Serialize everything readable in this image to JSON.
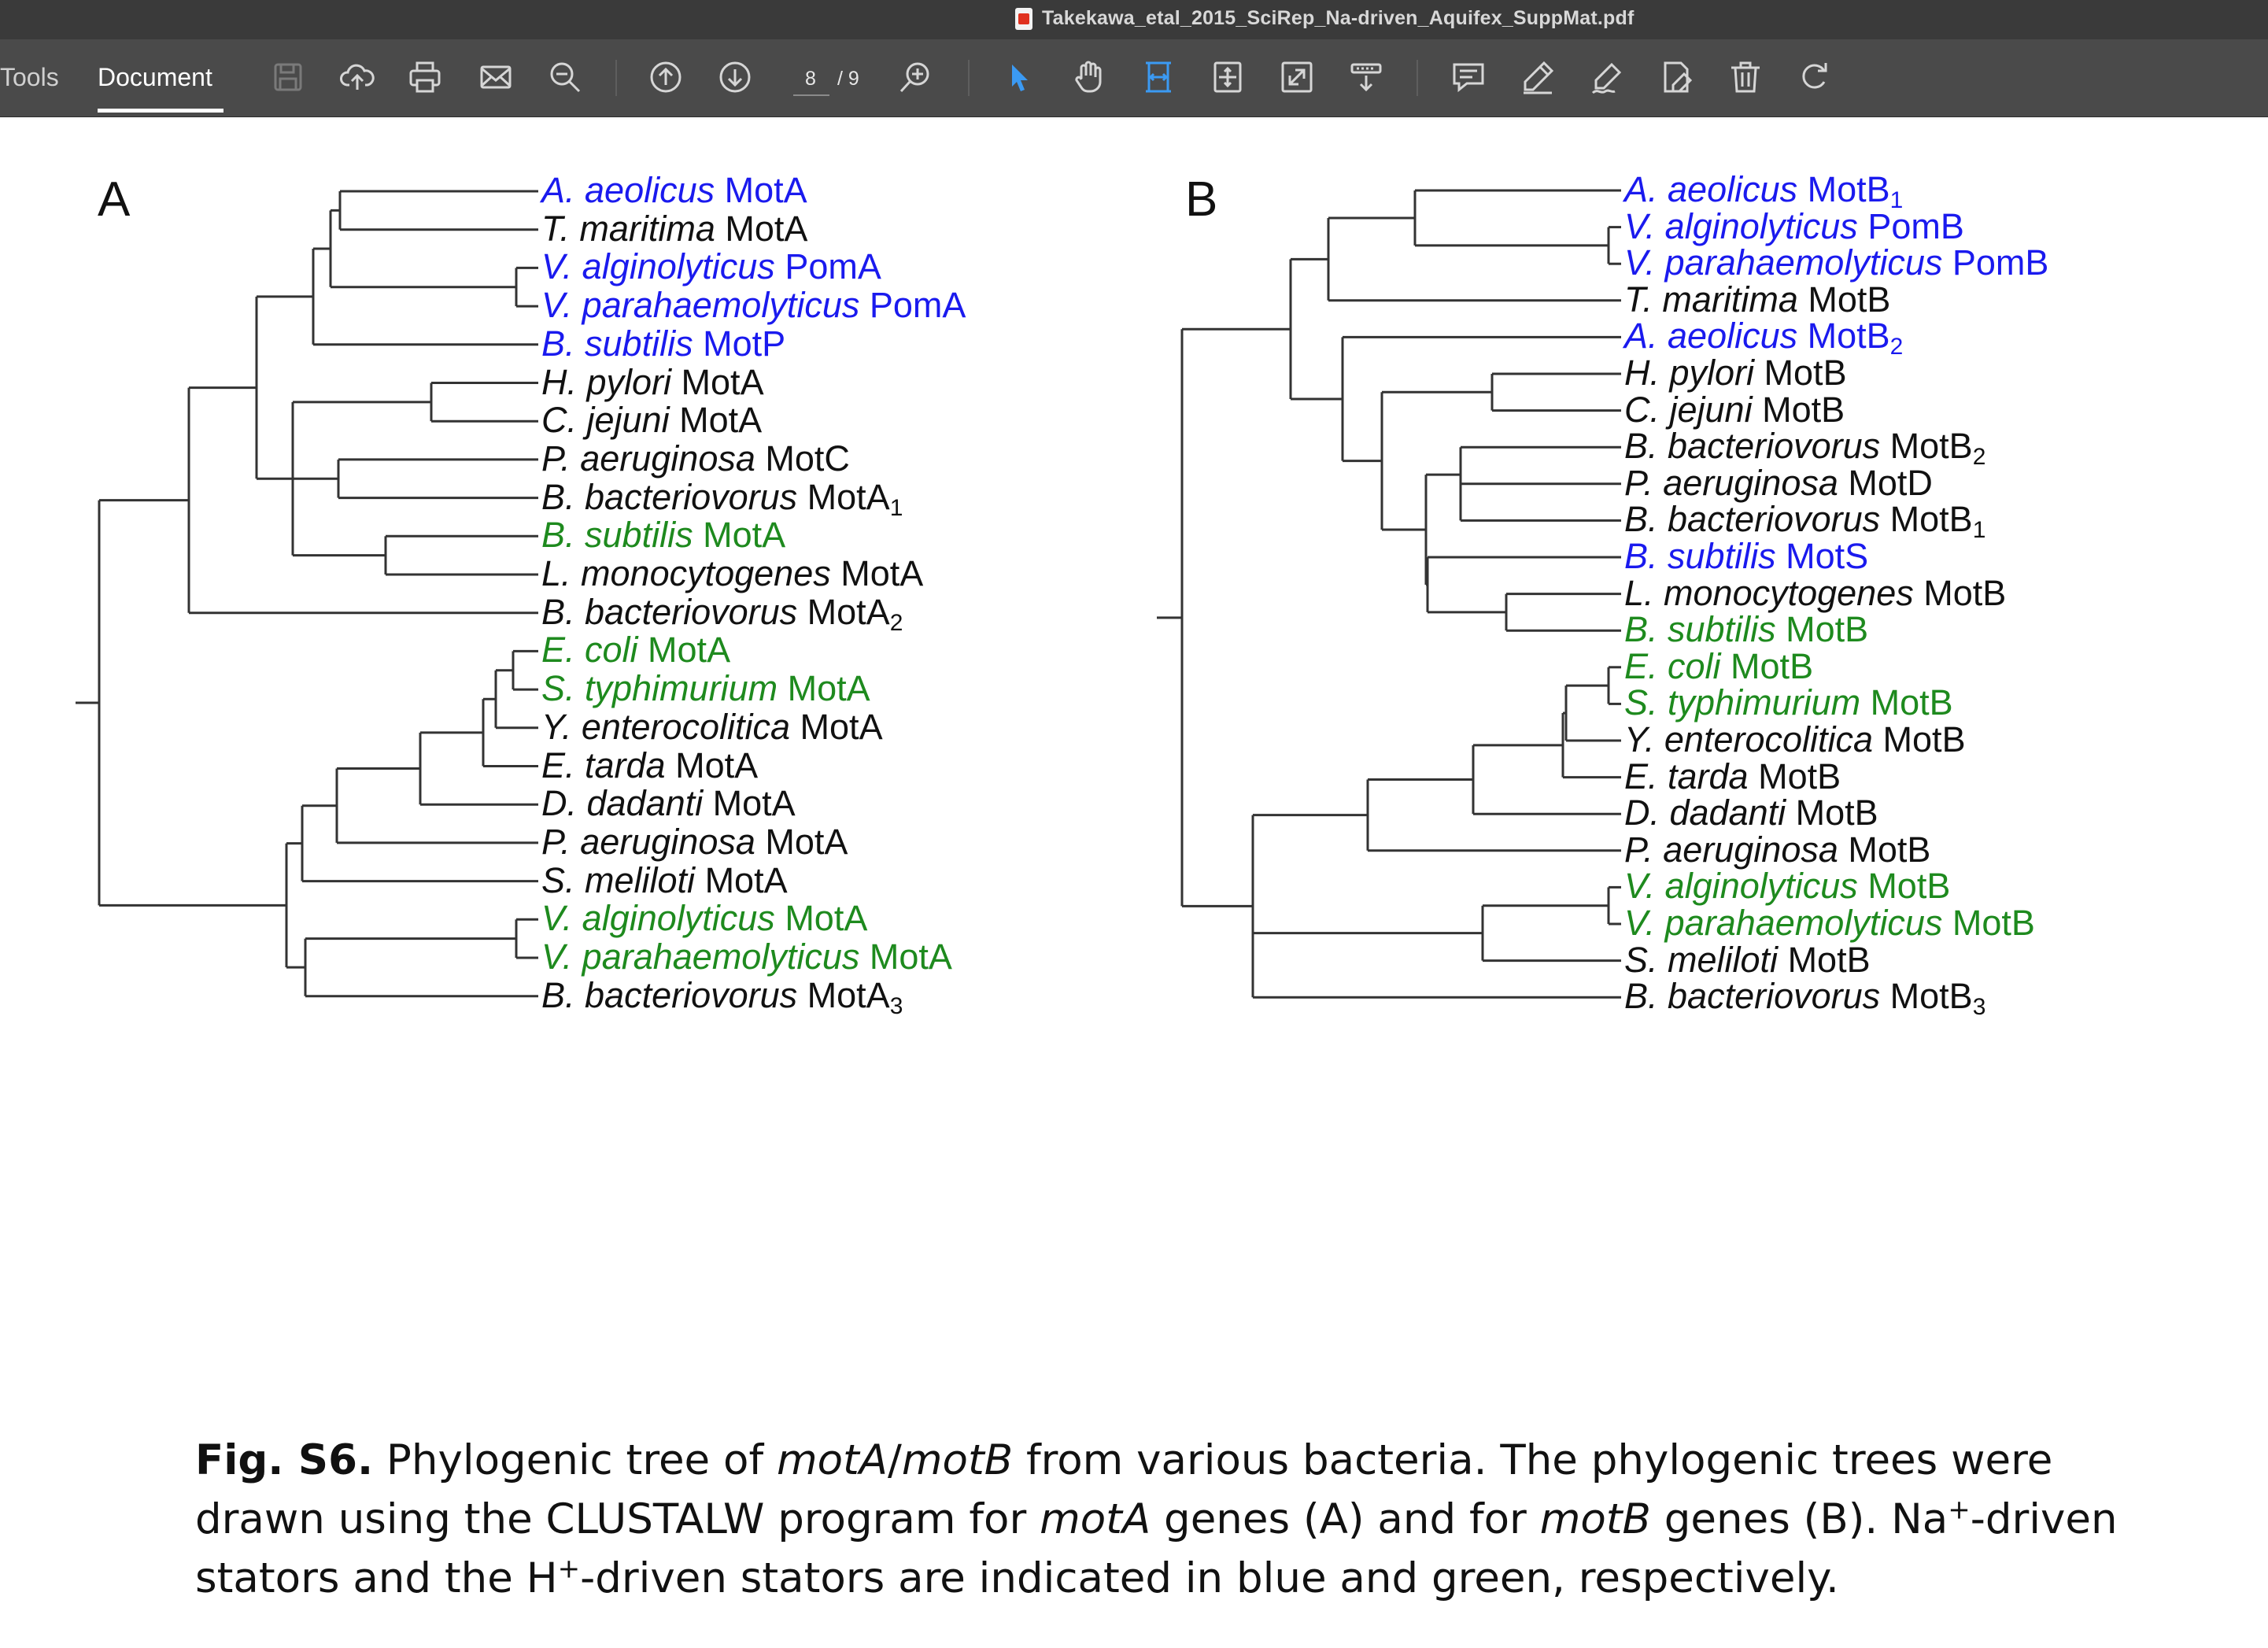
{
  "window": {
    "title": "Takekawa_etal_2015_SciRep_Na-driven_Aquifex_SuppMat.pdf"
  },
  "toolbar": {
    "tabs": [
      "Tools",
      "Document"
    ],
    "active_tab": "Document",
    "page_current": "8",
    "page_total": "/ 9",
    "icons": [
      "save-icon",
      "cloud-upload-icon",
      "print-icon",
      "email-icon",
      "zoom-out-icon",
      "page-up-icon",
      "page-down-icon",
      "zoom-in-icon",
      "select-tool-icon",
      "hand-tool-icon",
      "marquee-zoom-icon",
      "fit-page-icon",
      "full-screen-icon",
      "read-mode-icon",
      "comment-icon",
      "highlight-icon",
      "sign-icon",
      "edit-icon",
      "delete-icon",
      "rotate-icon"
    ],
    "accent_color": "#3b9af3"
  },
  "figure": {
    "panel_a": {
      "label": "A",
      "leaves": [
        {
          "species": "A. aeolicus",
          "gene": "MotA",
          "sub": "",
          "color": "blue"
        },
        {
          "species": "T. maritima",
          "gene": "MotA",
          "sub": "",
          "color": "black"
        },
        {
          "species": "V. alginolyticus",
          "gene": "PomA",
          "sub": "",
          "color": "blue"
        },
        {
          "species": "V. parahaemolyticus",
          "gene": "PomA",
          "sub": "",
          "color": "blue"
        },
        {
          "species": "B. subtilis",
          "gene": "MotP",
          "sub": "",
          "color": "blue"
        },
        {
          "species": "H. pylori",
          "gene": "MotA",
          "sub": "",
          "color": "black"
        },
        {
          "species": "C. jejuni",
          "gene": "MotA",
          "sub": "",
          "color": "black"
        },
        {
          "species": "P. aeruginosa",
          "gene": "MotC",
          "sub": "",
          "color": "black"
        },
        {
          "species": "B. bacteriovorus",
          "gene": "MotA",
          "sub": "1",
          "color": "black"
        },
        {
          "species": "B. subtilis",
          "gene": "MotA",
          "sub": "",
          "color": "green"
        },
        {
          "species": "L. monocytogenes",
          "gene": "MotA",
          "sub": "",
          "color": "black"
        },
        {
          "species": "B. bacteriovorus",
          "gene": "MotA",
          "sub": "2",
          "color": "black"
        },
        {
          "species": "E. coli",
          "gene": "MotA",
          "sub": "",
          "color": "green"
        },
        {
          "species": "S. typhimurium",
          "gene": " MotA",
          "sub": "",
          "color": "green"
        },
        {
          "species": "Y. enterocolitica",
          "gene": "MotA",
          "sub": "",
          "color": "black"
        },
        {
          "species": "E. tarda",
          "gene": "MotA",
          "sub": "",
          "color": "black"
        },
        {
          "species": "D. dadanti",
          "gene": "MotA",
          "sub": "",
          "color": "black"
        },
        {
          "species": "P. aeruginosa",
          "gene": "MotA",
          "sub": "",
          "color": "black"
        },
        {
          "species": "S. meliloti",
          "gene": "MotA",
          "sub": "",
          "color": "black"
        },
        {
          "species": "V. alginolyticus",
          "gene": "MotA",
          "sub": "",
          "color": "green"
        },
        {
          "species": "V. parahaemolyticus",
          "gene": "MotA",
          "sub": "",
          "color": "green"
        },
        {
          "species": "B. bacteriovorus",
          "gene": "MotA",
          "sub": "3",
          "color": "black"
        }
      ]
    },
    "panel_b": {
      "label": "B",
      "leaves": [
        {
          "species": "A. aeolicus",
          "gene": "MotB",
          "sub": "1",
          "color": "blue"
        },
        {
          "species": "V. alginolyticus",
          "gene": "PomB",
          "sub": "",
          "color": "blue"
        },
        {
          "species": "V. parahaemolyticus",
          "gene": "PomB",
          "sub": "",
          "color": "blue"
        },
        {
          "species": "T. maritima",
          "gene": "MotB",
          "sub": "",
          "color": "black"
        },
        {
          "species": "A. aeolicus",
          "gene": "MotB",
          "sub": "2",
          "color": "blue"
        },
        {
          "species": "H. pylori",
          "gene": "MotB",
          "sub": "",
          "color": "black"
        },
        {
          "species": "C. jejuni",
          "gene": "MotB",
          "sub": "",
          "color": "black"
        },
        {
          "species": "B. bacteriovorus",
          "gene": "MotB",
          "sub": "2",
          "color": "black"
        },
        {
          "species": "P. aeruginosa",
          "gene": "MotD",
          "sub": "",
          "color": "black"
        },
        {
          "species": "B. bacteriovorus",
          "gene": "MotB",
          "sub": "1",
          "color": "black"
        },
        {
          "species": "B. subtilis",
          "gene": "MotS",
          "sub": "",
          "color": "blue"
        },
        {
          "species": "L. monocytogenes",
          "gene": "MotB",
          "sub": "",
          "color": "black"
        },
        {
          "species": "B. subtilis",
          "gene": "MotB",
          "sub": "",
          "color": "green"
        },
        {
          "species": "E. coli",
          "gene": "MotB",
          "sub": "",
          "color": "green"
        },
        {
          "species": "S. typhimurium",
          "gene": "MotB",
          "sub": "",
          "color": "green"
        },
        {
          "species": "Y. enterocolitica",
          "gene": "MotB",
          "sub": "",
          "color": "black"
        },
        {
          "species": "E. tarda",
          "gene": "MotB",
          "sub": "",
          "color": "black"
        },
        {
          "species": "D. dadanti",
          "gene": "MotB",
          "sub": "",
          "color": "black"
        },
        {
          "species": "P. aeruginosa",
          "gene": "MotB",
          "sub": "",
          "color": "black"
        },
        {
          "species": "V. alginolyticus",
          "gene": "MotB",
          "sub": "",
          "color": "green"
        },
        {
          "species": "V. parahaemolyticus",
          "gene": "MotB",
          "sub": "",
          "color": "green"
        },
        {
          "species": "S. meliloti",
          "gene": "MotB",
          "sub": "",
          "color": "black"
        },
        {
          "species": "B. bacteriovorus",
          "gene": "MotB",
          "sub": "3",
          "color": "black"
        }
      ]
    },
    "colors": {
      "blue": "#1a1aee",
      "green": "#1e8a1e",
      "black": "#111111"
    }
  },
  "caption": {
    "label": "Fig. S6.",
    "segments": [
      {
        "t": " Phylogenic tree of ",
        "s": ""
      },
      {
        "t": "motA",
        "s": "i"
      },
      {
        "t": "/",
        "s": ""
      },
      {
        "t": "motB",
        "s": "i"
      },
      {
        "t": " from various bacteria. The phylogenic trees were drawn using the CLUSTALW program for ",
        "s": ""
      },
      {
        "t": "motA",
        "s": "i"
      },
      {
        "t": " genes (A) and for ",
        "s": ""
      },
      {
        "t": "motB",
        "s": "i"
      },
      {
        "t": " genes (B). Na",
        "s": ""
      },
      {
        "t": "+",
        "s": "sup"
      },
      {
        "t": "-driven stators and the H",
        "s": ""
      },
      {
        "t": "+",
        "s": "sup"
      },
      {
        "t": "-driven stators are indicated in blue and green, respectively.",
        "s": ""
      }
    ]
  }
}
